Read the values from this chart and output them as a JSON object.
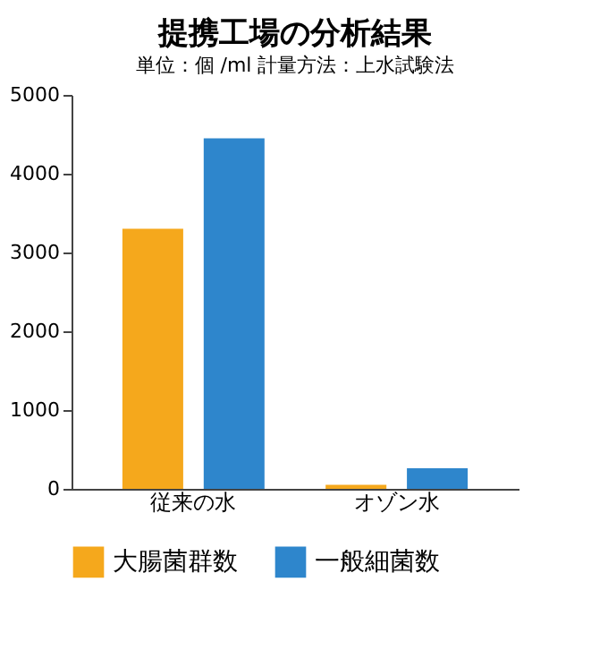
{
  "chart_data": {
    "type": "bar",
    "title": "提携工場の分析結果",
    "subtitle": "単位：個 /ml  計量方法：上水試験法",
    "categories": [
      "従来の水",
      "オゾン水"
    ],
    "series": [
      {
        "name": "大腸菌群数",
        "color": "#f5a81c",
        "values": [
          3300,
          50
        ]
      },
      {
        "name": "一般細菌数",
        "color": "#2e86cc",
        "values": [
          4450,
          260
        ]
      }
    ],
    "ylim": [
      0,
      5000
    ],
    "yticks": [
      0,
      1000,
      2000,
      3000,
      4000,
      5000
    ],
    "grid": false,
    "legend": "bottom"
  }
}
